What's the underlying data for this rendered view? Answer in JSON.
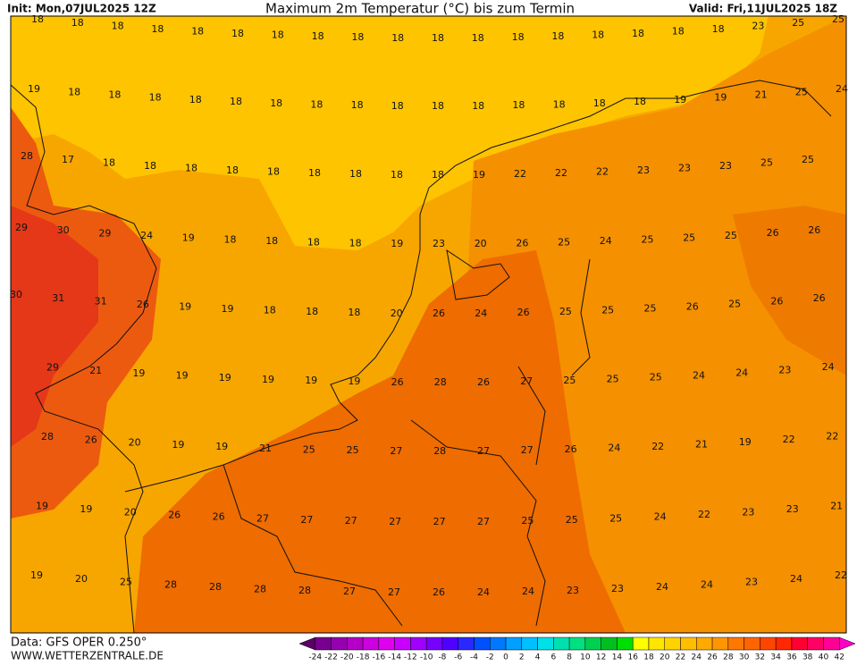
{
  "header": {
    "init": "Init: Mon,07JUL2025 12Z",
    "title": "Maximum 2m Temperatur (°C) bis zum Termin",
    "valid": "Valid: Fri,11JUL2025 18Z"
  },
  "values": [
    [
      18,
      18,
      18,
      18,
      18,
      18,
      18,
      18,
      18,
      18,
      18,
      18,
      18,
      18,
      18,
      18,
      18,
      18,
      23,
      25,
      25
    ],
    [
      19,
      18,
      18,
      18,
      18,
      18,
      18,
      18,
      18,
      18,
      18,
      18,
      18,
      18,
      18,
      18,
      19,
      19,
      21,
      25,
      24
    ],
    [
      28,
      17,
      18,
      18,
      18,
      18,
      18,
      18,
      18,
      18,
      18,
      19,
      22,
      22,
      22,
      23,
      23,
      23,
      25,
      25
    ],
    [
      29,
      30,
      29,
      24,
      19,
      18,
      18,
      18,
      18,
      19,
      23,
      20,
      26,
      25,
      24,
      25,
      25,
      25,
      26,
      26
    ],
    [
      30,
      31,
      31,
      26,
      19,
      19,
      18,
      18,
      18,
      20,
      26,
      24,
      26,
      25,
      25,
      25,
      26,
      25,
      26,
      26
    ],
    [
      29,
      21,
      19,
      19,
      19,
      19,
      19,
      19,
      26,
      28,
      26,
      27,
      25,
      25,
      25,
      24,
      24,
      23,
      24
    ],
    [
      28,
      26,
      20,
      19,
      19,
      21,
      25,
      25,
      27,
      28,
      27,
      27,
      26,
      24,
      22,
      21,
      19,
      22,
      22
    ],
    [
      19,
      19,
      20,
      26,
      26,
      27,
      27,
      27,
      27,
      27,
      27,
      25,
      25,
      25,
      24,
      22,
      23,
      23,
      21
    ],
    [
      19,
      20,
      25,
      28,
      28,
      28,
      28,
      27,
      27,
      26,
      24,
      24,
      23,
      23,
      24,
      24,
      23,
      24,
      22
    ]
  ],
  "footer": {
    "source": "Data: GFS OPER 0.250°",
    "site": "WWW.WETTERZENTRALE.DE"
  },
  "legend": {
    "labels": [
      -24,
      -22,
      -20,
      -18,
      -16,
      -14,
      -12,
      -10,
      -8,
      -6,
      -4,
      -2,
      0,
      2,
      4,
      6,
      8,
      10,
      12,
      14,
      16,
      18,
      20,
      22,
      24,
      26,
      28,
      30,
      32,
      34,
      36,
      38,
      40,
      42
    ],
    "colors": [
      "#5a0064",
      "#780090",
      "#9600b0",
      "#b400c8",
      "#cc00e0",
      "#e000f0",
      "#c800ff",
      "#a000ff",
      "#7800ff",
      "#5000ff",
      "#2828ff",
      "#0050ff",
      "#0078ff",
      "#00a0ff",
      "#00c0ff",
      "#00e0e8",
      "#00e0b0",
      "#00e080",
      "#00d050",
      "#00c020",
      "#00e000",
      "#ffff00",
      "#ffe600",
      "#ffd200",
      "#ffbe00",
      "#ffaa00",
      "#ff9600",
      "#ff7800",
      "#ff6400",
      "#ff4600",
      "#ff2800",
      "#ff0032",
      "#ff0064",
      "#ff0096",
      "#ff00c8"
    ]
  }
}
